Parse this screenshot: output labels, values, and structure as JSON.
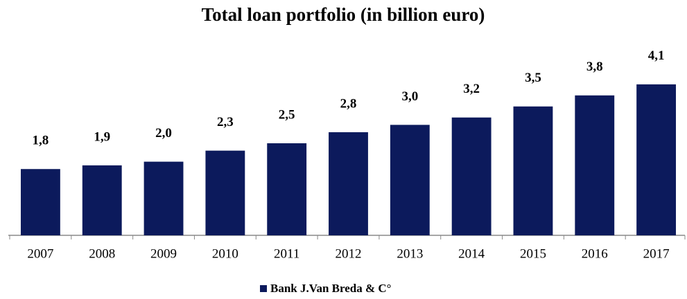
{
  "chart_data": {
    "type": "bar",
    "title": "Total loan portfolio (in billion euro)",
    "categories": [
      "2007",
      "2008",
      "2009",
      "2010",
      "2011",
      "2012",
      "2013",
      "2014",
      "2015",
      "2016",
      "2017"
    ],
    "series": [
      {
        "name": "Bank J.Van Breda & C°",
        "color": "#0c1a5c",
        "values": [
          1.8,
          1.9,
          2.0,
          2.3,
          2.5,
          2.8,
          3.0,
          3.2,
          3.5,
          3.8,
          4.1
        ],
        "value_labels": [
          "1,8",
          "1,9",
          "2,0",
          "2,3",
          "2,5",
          "2,8",
          "3,0",
          "3,2",
          "3,5",
          "3,8",
          "4,1"
        ]
      }
    ],
    "ylim": [
      0,
      5
    ],
    "legend": "bottom"
  }
}
